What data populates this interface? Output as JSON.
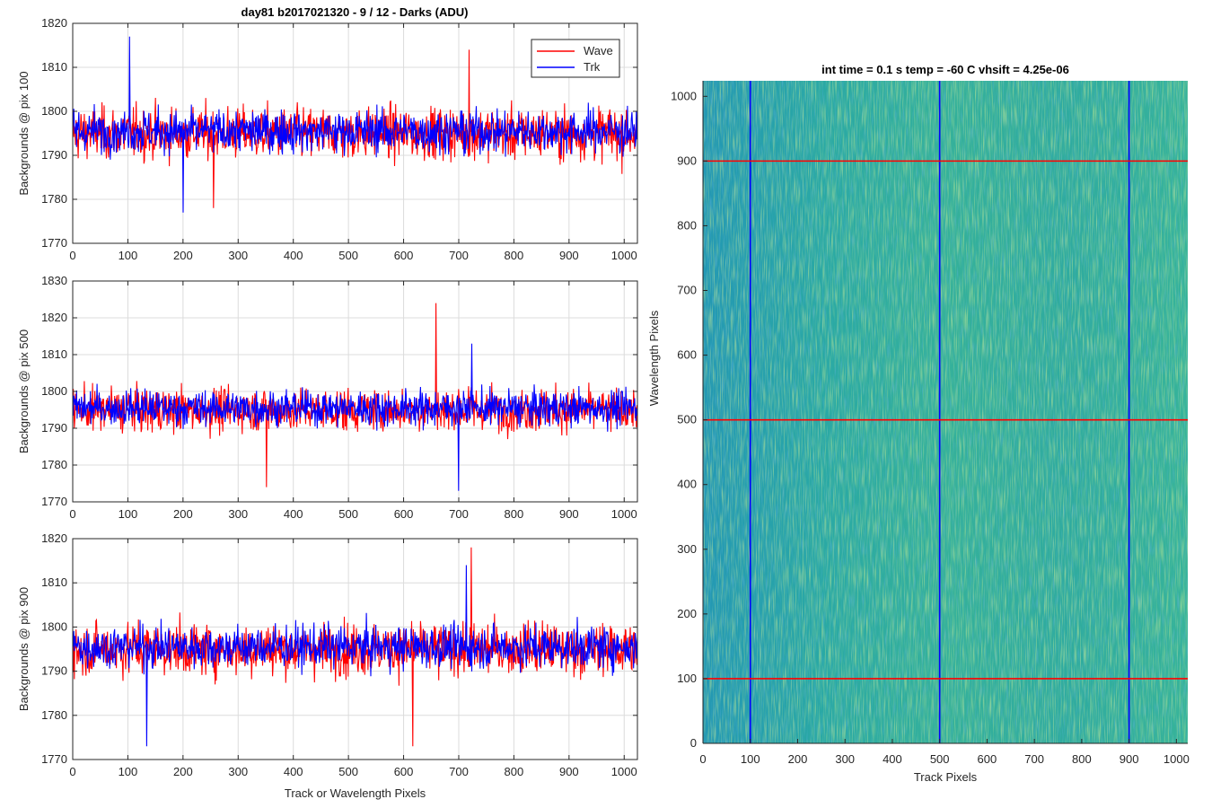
{
  "figure": {
    "left_title": "day81 b2017021320 - 9 / 12 - Darks (ADU)",
    "right_title": "int time = 0.1 s   temp = -60 C   vhsift = 4.25e-06"
  },
  "colors": {
    "wave": "#ff0000",
    "trk": "#0000ff",
    "grid": "#dcdcdc",
    "image_base": "#2aa9a4",
    "image_bright": "#8ccf55",
    "image_dark": "#1f8fb8"
  },
  "chart_data": [
    {
      "type": "line",
      "ylabel": "Backgrounds @ pix 100",
      "xlabel": "",
      "xlim": [
        0,
        1024
      ],
      "ylim": [
        1770,
        1820
      ],
      "x_ticks": [
        0,
        100,
        200,
        300,
        400,
        500,
        600,
        700,
        800,
        900,
        1000
      ],
      "y_ticks": [
        1770,
        1780,
        1790,
        1800,
        1810,
        1820
      ],
      "grid": true,
      "legend": {
        "placement": "top-right",
        "entries": [
          "Wave",
          "Trk"
        ]
      },
      "series": [
        {
          "name": "Wave",
          "color": "#ff0000",
          "mean": 1795,
          "noise": 5.5,
          "min": 1778,
          "max": 1814,
          "points": 1024
        },
        {
          "name": "Trk",
          "color": "#0000ff",
          "mean": 1795.5,
          "noise": 4.5,
          "min": 1777,
          "max": 1817,
          "points": 1024
        }
      ]
    },
    {
      "type": "line",
      "ylabel": "Backgrounds @ pix 500",
      "xlabel": "",
      "xlim": [
        0,
        1024
      ],
      "ylim": [
        1770,
        1830
      ],
      "x_ticks": [
        0,
        100,
        200,
        300,
        400,
        500,
        600,
        700,
        800,
        900,
        1000
      ],
      "y_ticks": [
        1770,
        1780,
        1790,
        1800,
        1810,
        1820,
        1830
      ],
      "grid": true,
      "series": [
        {
          "name": "Wave",
          "color": "#ff0000",
          "mean": 1795,
          "noise": 5.5,
          "min": 1774,
          "max": 1824,
          "points": 1024
        },
        {
          "name": "Trk",
          "color": "#0000ff",
          "mean": 1795.5,
          "noise": 4.5,
          "min": 1773,
          "max": 1813,
          "points": 1024
        }
      ]
    },
    {
      "type": "line",
      "ylabel": "Backgrounds @ pix 900",
      "xlabel": "Track or Wavelength Pixels",
      "xlim": [
        0,
        1024
      ],
      "ylim": [
        1770,
        1820
      ],
      "x_ticks": [
        0,
        100,
        200,
        300,
        400,
        500,
        600,
        700,
        800,
        900,
        1000
      ],
      "y_ticks": [
        1770,
        1780,
        1790,
        1800,
        1810,
        1820
      ],
      "grid": true,
      "series": [
        {
          "name": "Wave",
          "color": "#ff0000",
          "mean": 1795,
          "noise": 5.5,
          "min": 1773,
          "max": 1818,
          "points": 1024
        },
        {
          "name": "Trk",
          "color": "#0000ff",
          "mean": 1795.5,
          "noise": 4.5,
          "min": 1773,
          "max": 1814,
          "points": 1024
        }
      ]
    },
    {
      "type": "heatmap",
      "xlabel": "Track Pixels",
      "ylabel": "Wavelength Pixels",
      "xlim": [
        0,
        1024
      ],
      "ylim": [
        0,
        1024
      ],
      "x_ticks": [
        0,
        100,
        200,
        300,
        400,
        500,
        600,
        700,
        800,
        900,
        1000
      ],
      "y_ticks": [
        0,
        100,
        200,
        300,
        400,
        500,
        600,
        700,
        800,
        900,
        1000
      ],
      "grid": false,
      "overlay_lines": [
        {
          "orientation": "vertical",
          "value": 100,
          "color": "#0000ff"
        },
        {
          "orientation": "vertical",
          "value": 500,
          "color": "#0000ff"
        },
        {
          "orientation": "vertical",
          "value": 900,
          "color": "#0000ff"
        },
        {
          "orientation": "horizontal",
          "value": 100,
          "color": "#ff0000"
        },
        {
          "orientation": "horizontal",
          "value": 500,
          "color": "#ff0000"
        },
        {
          "orientation": "horizontal",
          "value": 900,
          "color": "#ff0000"
        }
      ]
    }
  ]
}
